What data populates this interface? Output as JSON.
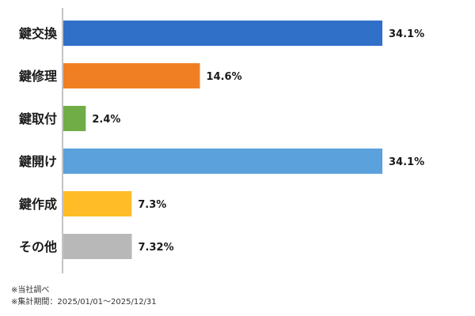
{
  "chart_data": {
    "type": "bar",
    "orientation": "horizontal",
    "categories": [
      "鍵交換",
      "鍵修理",
      "鍵取付",
      "鍵開け",
      "鍵作成",
      "その他"
    ],
    "values": [
      34.1,
      14.6,
      2.4,
      34.1,
      7.3,
      7.32
    ],
    "value_labels": [
      "34.1%",
      "14.6%",
      "2.4%",
      "34.1%",
      "7.3%",
      "7.32%"
    ],
    "colors": [
      "#3070C8",
      "#F07F24",
      "#70AD47",
      "#5BA1DC",
      "#FFBC26",
      "#B8B8B8"
    ],
    "xlim": [
      0,
      34.1
    ],
    "grid": false,
    "legend": "none"
  },
  "notes": {
    "line1": "※当社調べ",
    "line2": "※集計期間：2025/01/01～2025/12/31"
  }
}
